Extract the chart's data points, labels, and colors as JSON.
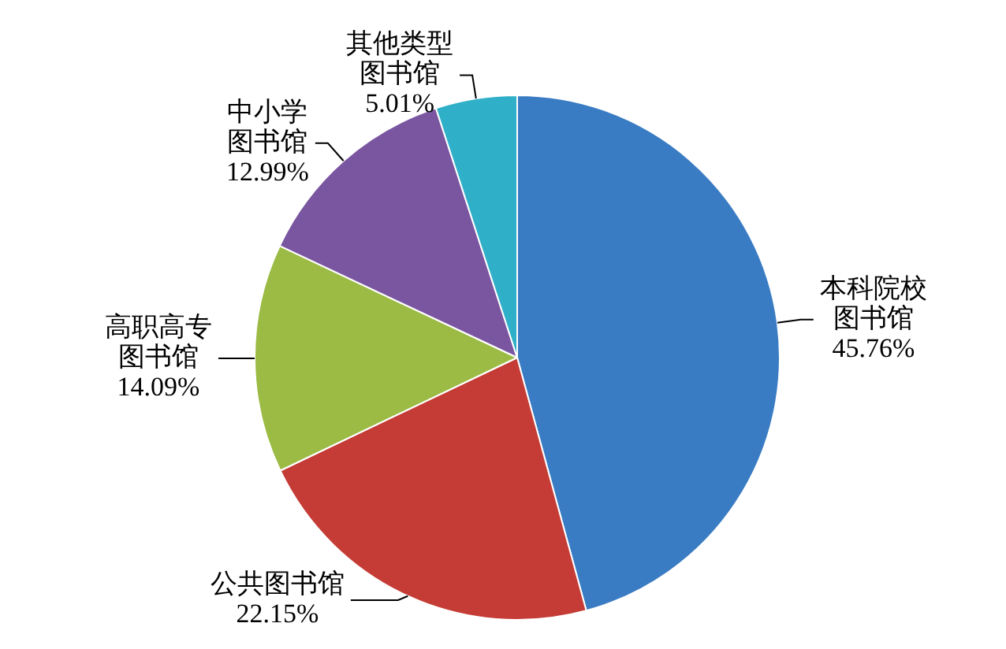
{
  "chart_data": {
    "type": "pie",
    "categories": [
      "本科院校图书馆",
      "公共图书馆",
      "高职高专图书馆",
      "中小学图书馆",
      "其他类型图书馆"
    ],
    "values": [
      45.76,
      22.15,
      14.09,
      12.99,
      5.01
    ],
    "value_labels": [
      "45.76%",
      "22.15%",
      "14.09%",
      "12.99%",
      "5.01%"
    ],
    "colors": [
      "#3a7cc3",
      "#c43c35",
      "#9bbb45",
      "#7a56a0",
      "#2fb0c8"
    ],
    "legend": false
  }
}
